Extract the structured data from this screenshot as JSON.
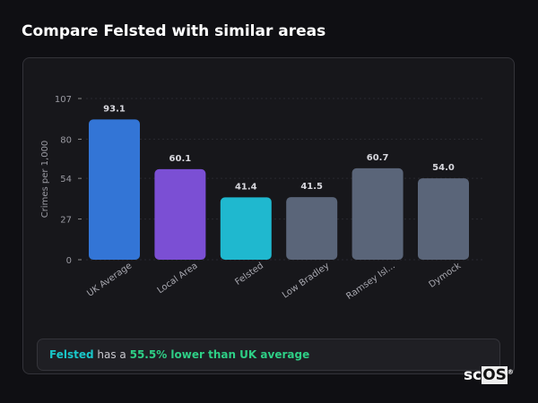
{
  "header": {
    "title": "Compare Felsted with similar areas"
  },
  "chart_data": {
    "type": "bar",
    "categories": [
      "UK Average",
      "Local Area",
      "Felsted",
      "Low Bradley",
      "Ramsey Isl...",
      "Dymock"
    ],
    "values": [
      93.1,
      60.1,
      41.4,
      41.5,
      60.7,
      54.0
    ],
    "value_labels": [
      "93.1",
      "60.1",
      "41.4",
      "41.5",
      "60.7",
      "54.0"
    ],
    "colors": [
      "#3375d6",
      "#7b4fd4",
      "#1fb8cf",
      "#5a6579",
      "#5a6579",
      "#5a6579"
    ],
    "ylabel": "Crimes per 1,000",
    "ylim": [
      0,
      107
    ],
    "yticks": [
      0,
      27,
      54,
      80,
      107
    ],
    "grid": true
  },
  "summary": {
    "area": "Felsted",
    "text1": " has a ",
    "highlight": "55.5% lower than UK average"
  },
  "logo": {
    "text_sc": "sc",
    "text_os": "OS"
  }
}
